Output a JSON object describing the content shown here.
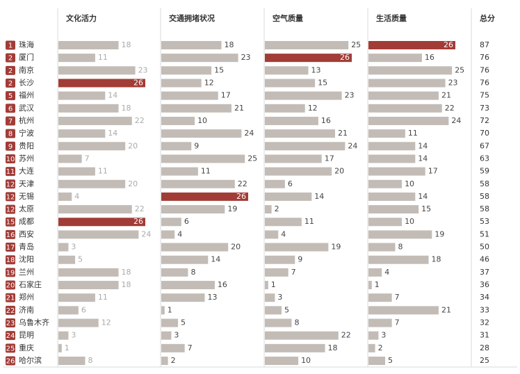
{
  "chart_data": {
    "type": "bar",
    "categories": [
      "珠海",
      "厦门",
      "南京",
      "长沙",
      "福州",
      "武汉",
      "杭州",
      "宁波",
      "贵阳",
      "苏州",
      "大连",
      "天津",
      "无锡",
      "太原",
      "成都",
      "西安",
      "青岛",
      "沈阳",
      "兰州",
      "石家庄",
      "郑州",
      "济南",
      "乌鲁木齐",
      "昆明",
      "重庆",
      "哈尔滨"
    ],
    "ranks": [
      1,
      2,
      2,
      2,
      5,
      6,
      7,
      8,
      9,
      10,
      11,
      12,
      12,
      12,
      15,
      16,
      17,
      18,
      19,
      20,
      21,
      22,
      23,
      24,
      25,
      26
    ],
    "xlim": [
      0,
      26
    ],
    "color": "#c3bcb6",
    "highlight_color": "#a23c37",
    "rank_color": "#a23c37",
    "series": [
      {
        "name": "文化活力",
        "values": [
          18,
          11,
          23,
          26,
          14,
          18,
          22,
          14,
          20,
          7,
          11,
          20,
          4,
          22,
          26,
          24,
          3,
          5,
          18,
          18,
          11,
          6,
          12,
          3,
          1,
          8
        ]
      },
      {
        "name": "交通拥堵状况",
        "values": [
          18,
          23,
          15,
          12,
          17,
          21,
          10,
          24,
          9,
          25,
          11,
          22,
          26,
          19,
          6,
          4,
          20,
          14,
          8,
          16,
          13,
          1,
          5,
          3,
          7,
          2
        ]
      },
      {
        "name": "空气质量",
        "values": [
          25,
          26,
          13,
          15,
          23,
          12,
          16,
          21,
          24,
          17,
          20,
          6,
          14,
          2,
          11,
          4,
          19,
          9,
          7,
          1,
          3,
          5,
          8,
          22,
          18,
          10
        ]
      },
      {
        "name": "生活质量",
        "values": [
          26,
          16,
          25,
          23,
          21,
          22,
          24,
          11,
          14,
          14,
          17,
          10,
          14,
          15,
          10,
          19,
          8,
          18,
          4,
          1,
          7,
          21,
          7,
          3,
          2,
          5
        ]
      }
    ],
    "total": {
      "name": "总分",
      "values": [
        87,
        76,
        76,
        76,
        75,
        73,
        72,
        70,
        67,
        63,
        59,
        58,
        58,
        58,
        53,
        51,
        50,
        46,
        37,
        36,
        34,
        33,
        32,
        31,
        28,
        25
      ]
    }
  }
}
